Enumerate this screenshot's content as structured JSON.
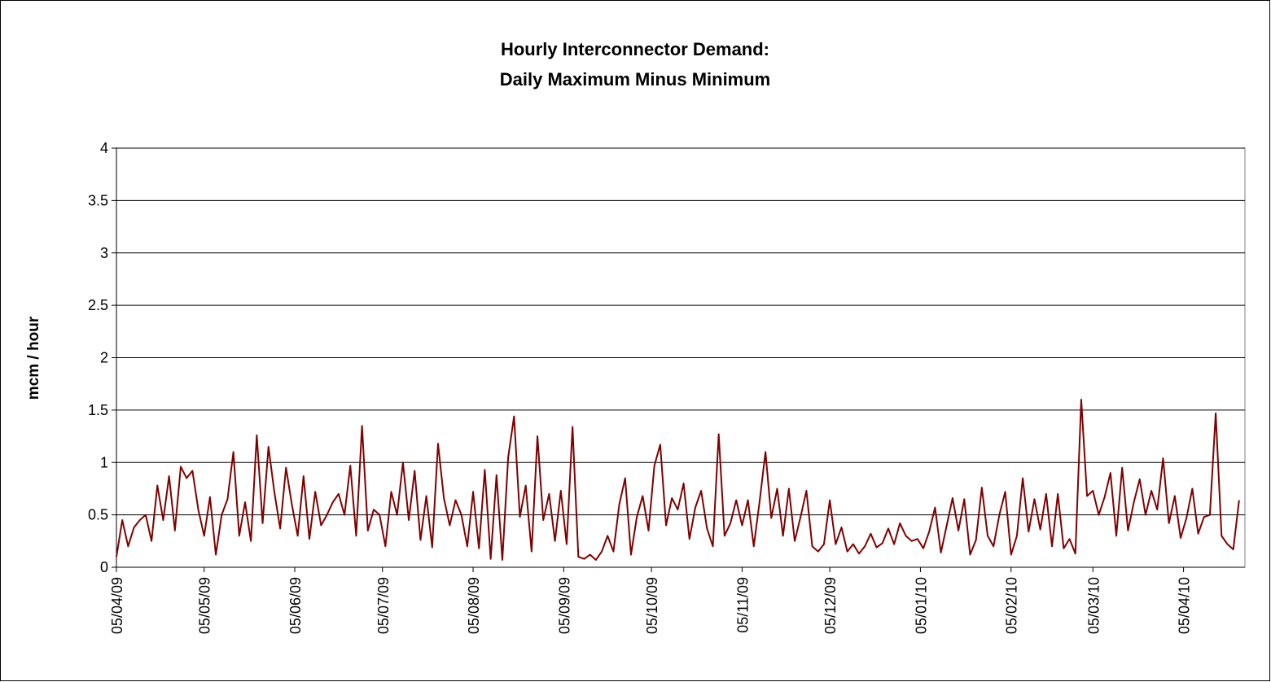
{
  "chart_data": {
    "type": "line",
    "title": [
      "Hourly Interconnector Demand:",
      "Daily Maximum Minus Minimum"
    ],
    "y_label": "mcm / hour",
    "x": [
      "05/04/09",
      "07/04/09",
      "09/04/09",
      "11/04/09",
      "13/04/09",
      "15/04/09",
      "17/04/09",
      "19/04/09",
      "21/04/09",
      "23/04/09",
      "25/04/09",
      "27/04/09",
      "29/04/09",
      "01/05/09",
      "03/05/09",
      "05/05/09",
      "07/05/09",
      "09/05/09",
      "11/05/09",
      "13/05/09",
      "15/05/09",
      "17/05/09",
      "19/05/09",
      "21/05/09",
      "23/05/09",
      "25/05/09",
      "27/05/09",
      "29/05/09",
      "31/05/09",
      "02/06/09",
      "04/06/09",
      "06/06/09",
      "08/06/09",
      "10/06/09",
      "12/06/09",
      "14/06/09",
      "16/06/09",
      "18/06/09",
      "20/06/09",
      "22/06/09",
      "24/06/09",
      "26/06/09",
      "28/06/09",
      "30/06/09",
      "02/07/09",
      "04/07/09",
      "06/07/09",
      "08/07/09",
      "10/07/09",
      "12/07/09",
      "14/07/09",
      "16/07/09",
      "18/07/09",
      "20/07/09",
      "22/07/09",
      "24/07/09",
      "26/07/09",
      "28/07/09",
      "30/07/09",
      "01/08/09",
      "03/08/09",
      "05/08/09",
      "07/08/09",
      "09/08/09",
      "11/08/09",
      "13/08/09",
      "15/08/09",
      "17/08/09",
      "19/08/09",
      "21/08/09",
      "23/08/09",
      "25/08/09",
      "27/08/09",
      "29/08/09",
      "31/08/09",
      "02/09/09",
      "04/09/09",
      "06/09/09",
      "08/09/09",
      "10/09/09",
      "12/09/09",
      "14/09/09",
      "16/09/09",
      "18/09/09",
      "20/09/09",
      "22/09/09",
      "24/09/09",
      "26/09/09",
      "28/09/09",
      "30/09/09",
      "02/10/09",
      "04/10/09",
      "06/10/09",
      "08/10/09",
      "10/10/09",
      "12/10/09",
      "14/10/09",
      "16/10/09",
      "18/10/09",
      "20/10/09",
      "22/10/09",
      "24/10/09",
      "26/10/09",
      "28/10/09",
      "30/10/09",
      "01/11/09",
      "03/11/09",
      "05/11/09",
      "07/11/09",
      "09/11/09",
      "11/11/09",
      "13/11/09",
      "15/11/09",
      "17/11/09",
      "19/11/09",
      "21/11/09",
      "23/11/09",
      "25/11/09",
      "27/11/09",
      "29/11/09",
      "01/12/09",
      "03/12/09",
      "05/12/09",
      "07/12/09",
      "09/12/09",
      "11/12/09",
      "13/12/09",
      "15/12/09",
      "17/12/09",
      "19/12/09",
      "21/12/09",
      "23/12/09",
      "25/12/09",
      "27/12/09",
      "29/12/09",
      "31/12/09",
      "02/01/10",
      "04/01/10",
      "06/01/10",
      "08/01/10",
      "10/01/10",
      "12/01/10",
      "14/01/10",
      "16/01/10",
      "18/01/10",
      "20/01/10",
      "22/01/10",
      "24/01/10",
      "26/01/10",
      "28/01/10",
      "30/01/10",
      "01/02/10",
      "03/02/10",
      "05/02/10",
      "07/02/10",
      "09/02/10",
      "11/02/10",
      "13/02/10",
      "15/02/10",
      "17/02/10",
      "19/02/10",
      "21/02/10",
      "23/02/10",
      "25/02/10",
      "27/02/10",
      "01/03/10",
      "03/03/10",
      "05/03/10",
      "07/03/10",
      "09/03/10",
      "11/03/10",
      "13/03/10",
      "15/03/10",
      "17/03/10",
      "19/03/10",
      "21/03/10",
      "23/03/10",
      "25/03/10",
      "27/03/10",
      "29/03/10",
      "31/03/10",
      "02/04/10",
      "04/04/10",
      "06/04/10",
      "08/04/10",
      "10/04/10",
      "12/04/10",
      "14/04/10",
      "16/04/10",
      "18/04/10",
      "20/04/10",
      "22/04/10",
      "24/04/10"
    ],
    "series": [
      {
        "color": "#800000",
        "values": [
          0.1,
          0.45,
          0.2,
          0.38,
          0.45,
          0.5,
          0.25,
          0.78,
          0.45,
          0.87,
          0.35,
          0.96,
          0.85,
          0.92,
          0.55,
          0.3,
          0.67,
          0.12,
          0.5,
          0.65,
          1.1,
          0.3,
          0.62,
          0.25,
          1.26,
          0.42,
          1.15,
          0.72,
          0.37,
          0.95,
          0.6,
          0.3,
          0.87,
          0.27,
          0.72,
          0.4,
          0.5,
          0.62,
          0.7,
          0.5,
          0.97,
          0.3,
          1.35,
          0.35,
          0.55,
          0.5,
          0.2,
          0.72,
          0.5,
          1.0,
          0.45,
          0.92,
          0.26,
          0.68,
          0.19,
          1.18,
          0.66,
          0.4,
          0.64,
          0.5,
          0.2,
          0.72,
          0.18,
          0.93,
          0.08,
          0.88,
          0.07,
          1.05,
          1.44,
          0.48,
          0.78,
          0.15,
          1.25,
          0.45,
          0.7,
          0.25,
          0.73,
          0.22,
          1.34,
          0.1,
          0.08,
          0.12,
          0.07,
          0.15,
          0.3,
          0.15,
          0.6,
          0.85,
          0.12,
          0.48,
          0.68,
          0.35,
          0.97,
          1.17,
          0.4,
          0.66,
          0.55,
          0.8,
          0.27,
          0.57,
          0.73,
          0.37,
          0.2,
          1.27,
          0.3,
          0.42,
          0.64,
          0.4,
          0.64,
          0.2,
          0.63,
          1.1,
          0.47,
          0.75,
          0.3,
          0.75,
          0.25,
          0.48,
          0.73,
          0.2,
          0.15,
          0.22,
          0.64,
          0.22,
          0.38,
          0.15,
          0.22,
          0.13,
          0.2,
          0.32,
          0.19,
          0.23,
          0.37,
          0.22,
          0.42,
          0.3,
          0.25,
          0.27,
          0.18,
          0.34,
          0.57,
          0.14,
          0.4,
          0.66,
          0.35,
          0.65,
          0.12,
          0.26,
          0.76,
          0.3,
          0.2,
          0.5,
          0.72,
          0.12,
          0.3,
          0.85,
          0.34,
          0.65,
          0.36,
          0.7,
          0.2,
          0.7,
          0.18,
          0.27,
          0.13,
          1.6,
          0.68,
          0.73,
          0.5,
          0.67,
          0.9,
          0.3,
          0.95,
          0.35,
          0.62,
          0.84,
          0.5,
          0.73,
          0.55,
          1.04,
          0.42,
          0.68,
          0.28,
          0.47,
          0.75,
          0.32,
          0.48,
          0.5,
          1.47,
          0.3,
          0.22,
          0.17,
          0.64
        ]
      }
    ],
    "xlim": [
      "05/04/09",
      "26/04/10"
    ],
    "xticks": [
      "05/04/09",
      "05/05/09",
      "05/06/09",
      "05/07/09",
      "05/08/09",
      "05/09/09",
      "05/10/09",
      "05/11/09",
      "05/12/09",
      "05/01/10",
      "05/02/10",
      "05/03/10",
      "05/04/10"
    ],
    "ylim": [
      0,
      4
    ],
    "yticks": [
      0,
      0.5,
      1,
      1.5,
      2,
      2.5,
      3,
      3.5,
      4
    ],
    "grid": true
  }
}
